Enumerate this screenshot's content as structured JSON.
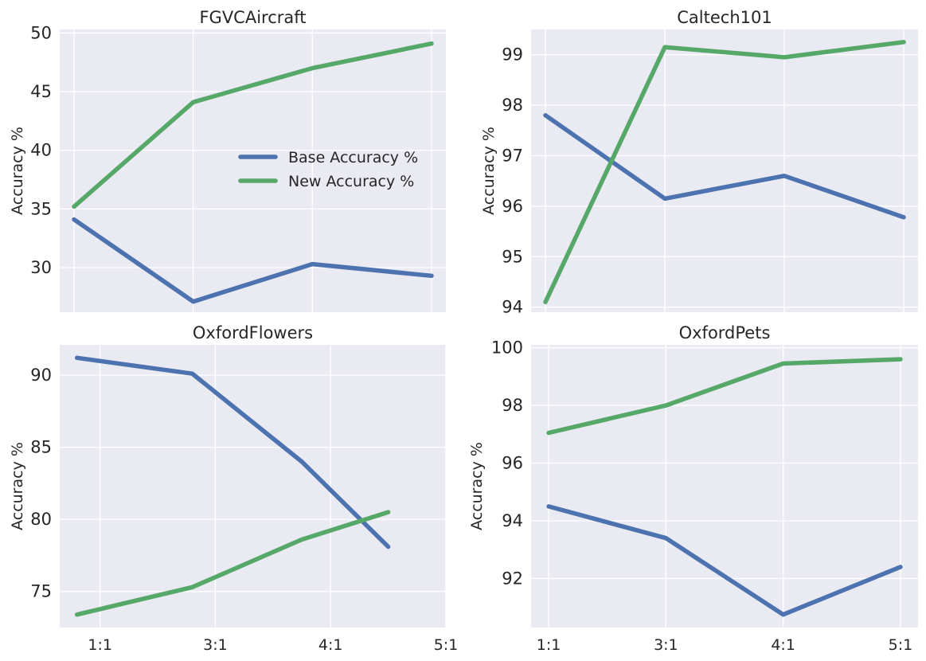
{
  "chart_data": [
    {
      "type": "line",
      "title": "FGVCAircraft",
      "ylabel": "Accuracy %",
      "xlabel": "",
      "categories": [
        "1:1",
        "3:1",
        "4:1",
        "5:1"
      ],
      "x": [
        0.0,
        1.0,
        2.0,
        3.0
      ],
      "xlim": [
        -0.12,
        3.12
      ],
      "ylim": [
        26.2,
        50.3
      ],
      "yticks": [
        30,
        35,
        40,
        45,
        50
      ],
      "show_xticks": false,
      "grid": true,
      "legend": "center-right",
      "series": [
        {
          "name": "Base Accuracy %",
          "color": "#4c72b0",
          "values": [
            34.1,
            27.1,
            30.3,
            29.3
          ]
        },
        {
          "name": "New Accuracy %",
          "color": "#55a868",
          "values": [
            35.2,
            44.1,
            47.0,
            49.1
          ]
        }
      ]
    },
    {
      "type": "line",
      "title": "Caltech101",
      "ylabel": "Accuracy %",
      "xlabel": "",
      "categories": [
        "1:1",
        "3:1",
        "4:1",
        "5:1"
      ],
      "x": [
        0.0,
        1.0,
        2.0,
        3.0
      ],
      "xlim": [
        -0.12,
        3.12
      ],
      "ylim": [
        93.9,
        99.5
      ],
      "yticks": [
        94,
        95,
        96,
        97,
        98,
        99
      ],
      "show_xticks": false,
      "grid": true,
      "series": [
        {
          "name": "Base Accuracy %",
          "color": "#4c72b0",
          "values": [
            97.8,
            96.15,
            96.6,
            95.78
          ]
        },
        {
          "name": "New Accuracy %",
          "color": "#55a868",
          "values": [
            94.1,
            99.15,
            98.95,
            99.25
          ]
        }
      ]
    },
    {
      "type": "line",
      "title": "OxfordFlowers",
      "ylabel": "Accuracy %",
      "xlabel": "",
      "categories": [
        "1:1",
        "3:1",
        "4:1",
        "5:1"
      ],
      "x": [
        0.0,
        1.0,
        1.95,
        2.7
      ],
      "xtick_positions": [
        0.2,
        1.2,
        2.2,
        3.2
      ],
      "xlim": [
        -0.15,
        3.2
      ],
      "ylim": [
        72.5,
        92.1
      ],
      "yticks": [
        75,
        80,
        85,
        90
      ],
      "show_xticks": true,
      "grid": true,
      "series": [
        {
          "name": "Base Accuracy %",
          "color": "#4c72b0",
          "values": [
            91.2,
            90.1,
            84.0,
            78.1
          ]
        },
        {
          "name": "New Accuracy %",
          "color": "#55a868",
          "values": [
            73.4,
            75.3,
            78.6,
            80.5
          ]
        }
      ]
    },
    {
      "type": "line",
      "title": "OxfordPets",
      "ylabel": "Accuracy %",
      "xlabel": "",
      "categories": [
        "1:1",
        "3:1",
        "4:1",
        "5:1"
      ],
      "x": [
        0.0,
        1.0,
        2.0,
        3.0
      ],
      "xtick_positions": [
        0.0,
        1.0,
        2.0,
        3.0
      ],
      "xlim": [
        -0.15,
        3.15
      ],
      "ylim": [
        90.3,
        100.1
      ],
      "yticks": [
        92,
        94,
        96,
        98,
        100
      ],
      "show_xticks": true,
      "grid": true,
      "series": [
        {
          "name": "Base Accuracy %",
          "color": "#4c72b0",
          "values": [
            94.5,
            93.4,
            90.75,
            92.4
          ]
        },
        {
          "name": "New Accuracy %",
          "color": "#55a868",
          "values": [
            97.05,
            98.0,
            99.45,
            99.6
          ]
        }
      ]
    }
  ]
}
